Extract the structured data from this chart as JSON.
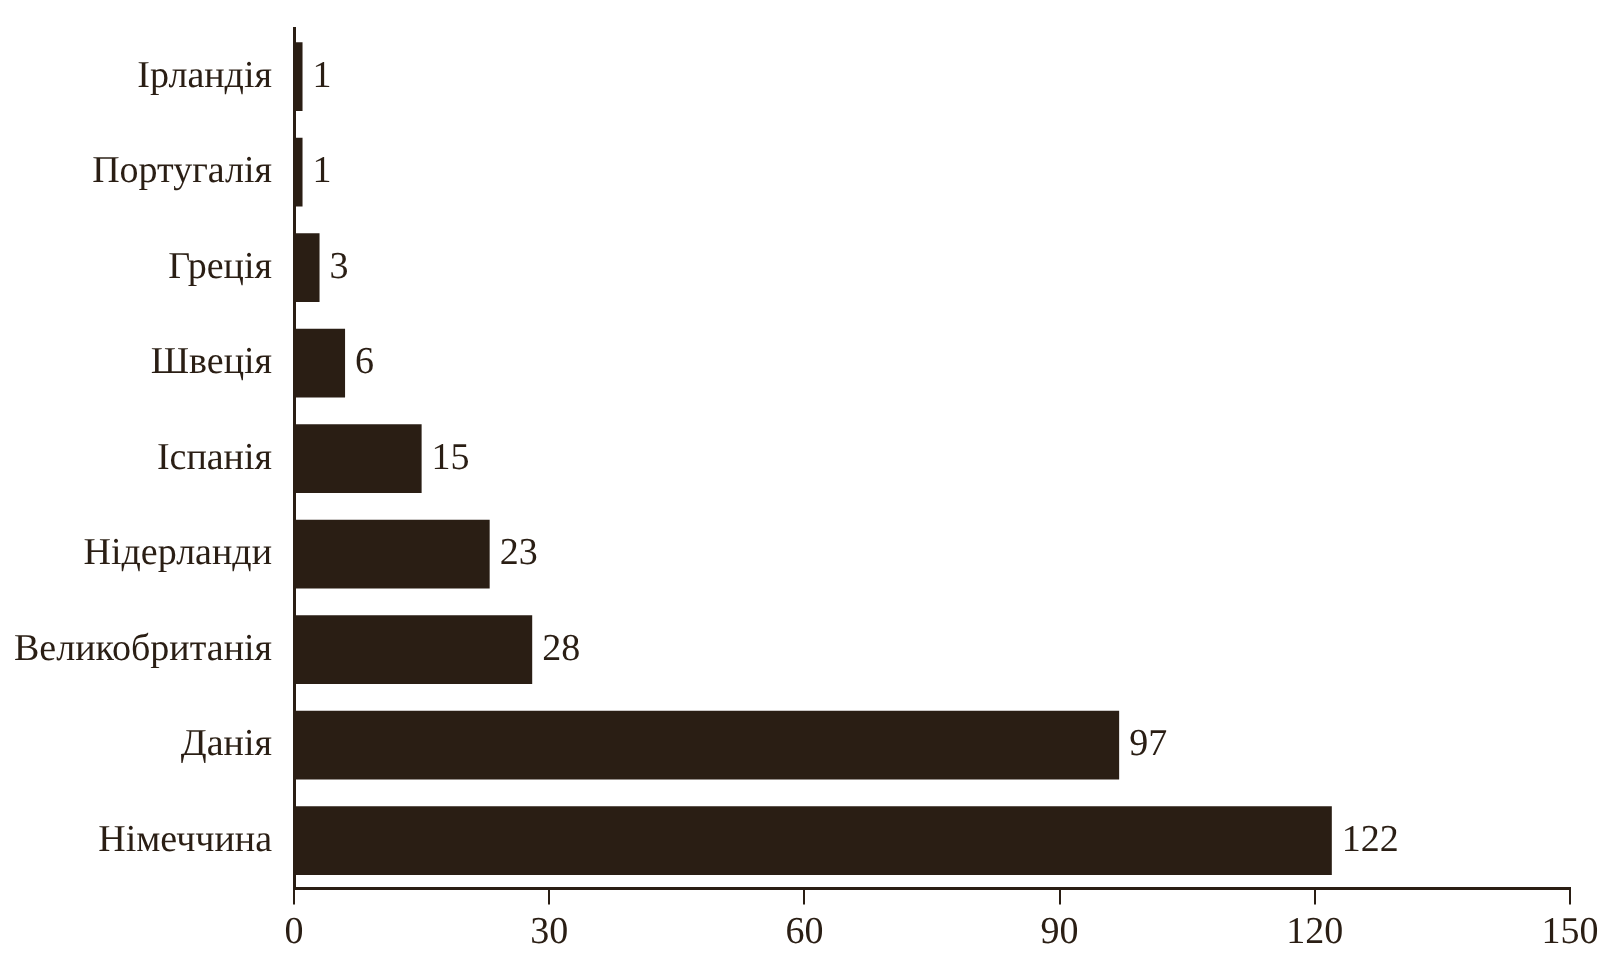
{
  "chart_data": {
    "type": "bar",
    "orientation": "horizontal",
    "categories": [
      "Ірландія",
      "Португалія",
      "Греція",
      "Швеція",
      "Іспанія",
      "Нідерланди",
      "Великобританія",
      "Данія",
      "Німеччина"
    ],
    "values": [
      1,
      1,
      3,
      6,
      15,
      23,
      28,
      97,
      122
    ],
    "color": "#2a1e14",
    "xlim": [
      0,
      150
    ],
    "xticks": [
      0,
      30,
      60,
      90,
      120,
      150
    ],
    "grid": false,
    "legend": false,
    "data_labels": true
  }
}
